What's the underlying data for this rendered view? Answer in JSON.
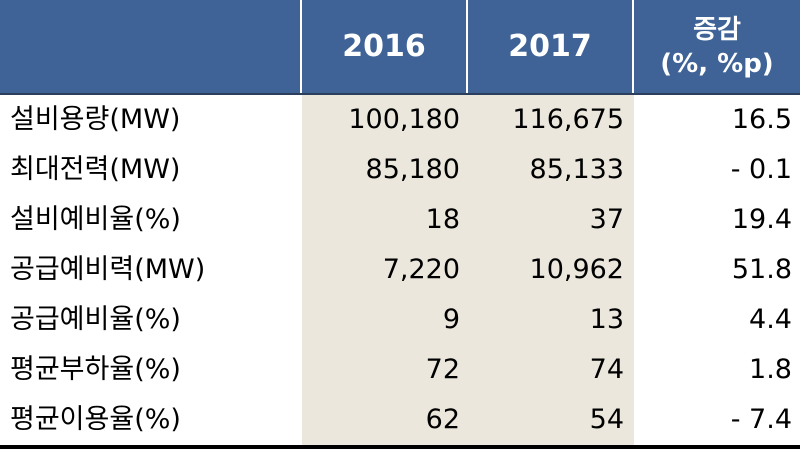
{
  "header": {
    "col1": "2016",
    "col2": "2017",
    "col3_line1": "증감",
    "col3_line2": "(%, %p)"
  },
  "rows": [
    {
      "label": "설비용량(MW)",
      "v2016": "100,180",
      "v2017": "116,675",
      "change": "16.5"
    },
    {
      "label": "최대전력(MW)",
      "v2016": "85,180",
      "v2017": "85,133",
      "change": "- 0.1"
    },
    {
      "label": "설비예비율(%)",
      "v2016": "18",
      "v2017": "37",
      "change": "19.4"
    },
    {
      "label": "공급예비력(MW)",
      "v2016": "7,220",
      "v2017": "10,962",
      "change": "51.8"
    },
    {
      "label": "공급예비율(%)",
      "v2016": "9",
      "v2017": "13",
      "change": "4.4"
    },
    {
      "label": "평균부하율(%)",
      "v2016": "72",
      "v2017": "74",
      "change": "1.8"
    },
    {
      "label": "평균이용율(%)",
      "v2016": "62",
      "v2017": "54",
      "change": "- 7.4"
    }
  ],
  "colors": {
    "header_bg": "#3f6397",
    "header_text": "#ffffff",
    "shaded_columns_bg": "#ebe7dc",
    "rule": "#000000"
  }
}
